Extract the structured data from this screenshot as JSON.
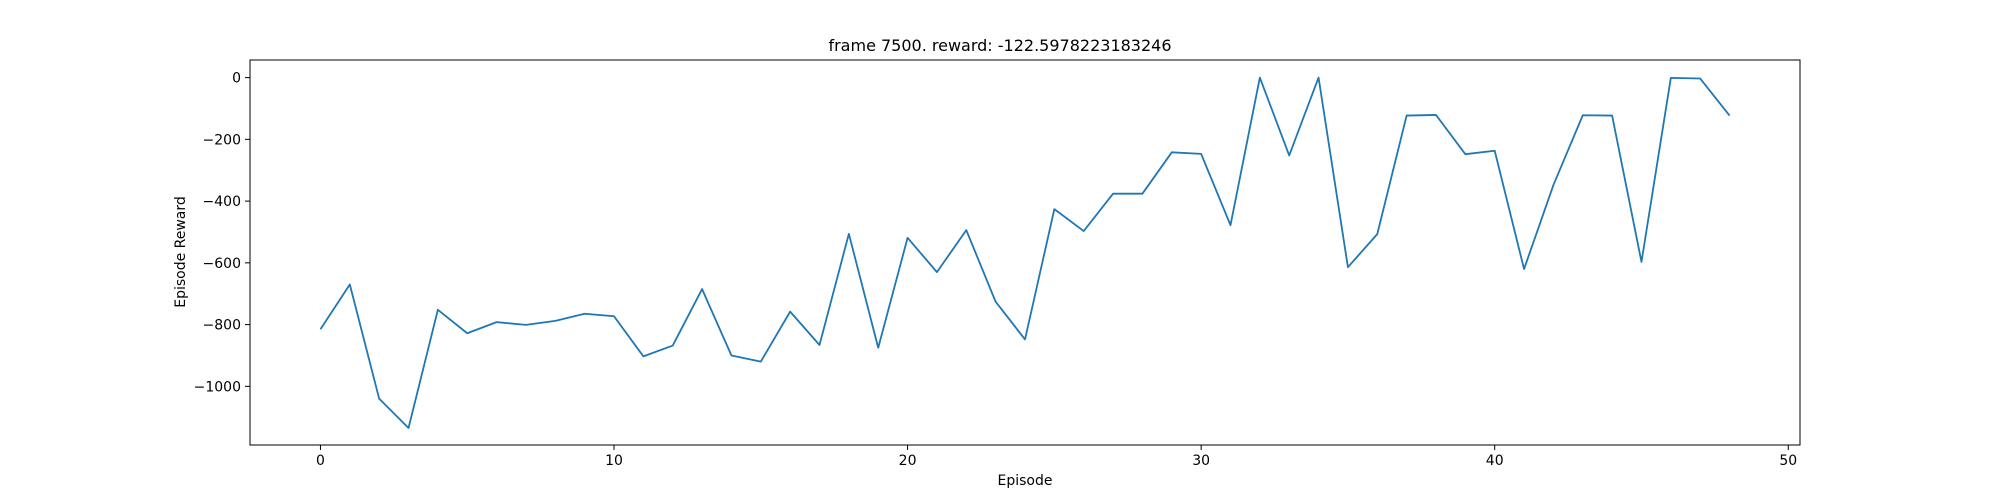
{
  "chart_data": {
    "type": "line",
    "title": "frame 7500. reward: -122.5978223183246",
    "xlabel": "Episode",
    "ylabel": "Episode Reward",
    "xlim": [
      -2.4,
      50.4
    ],
    "ylim": [
      -1190,
      57
    ],
    "xticks": [
      0,
      10,
      20,
      30,
      40,
      50
    ],
    "yticks": [
      0,
      -200,
      -400,
      -600,
      -800,
      -1000
    ],
    "xtick_labels": [
      "0",
      "10",
      "20",
      "30",
      "40",
      "50"
    ],
    "ytick_labels": [
      "0",
      "−200",
      "−400",
      "−600",
      "−800",
      "−1000"
    ],
    "grid": false,
    "line_color": "#1f77b4",
    "series": [
      {
        "x": [
          0,
          1,
          2,
          3,
          4,
          5,
          6,
          7,
          8,
          9,
          10,
          11,
          12,
          13,
          14,
          15,
          16,
          17,
          18,
          19,
          20,
          21,
          22,
          23,
          24,
          25,
          26,
          27,
          28,
          29,
          30,
          31,
          32,
          33,
          34,
          35,
          36,
          37,
          38,
          39,
          40,
          41,
          42,
          43,
          44,
          45,
          46,
          47,
          48
        ],
        "values": [
          -815,
          -670,
          -1040,
          -1135,
          -752,
          -828,
          -792,
          -801,
          -788,
          -765,
          -773,
          -903,
          -868,
          -685,
          -900,
          -920,
          -758,
          -866,
          -506,
          -875,
          -519,
          -630,
          -494,
          -726,
          -848,
          -426,
          -497,
          -376,
          -376,
          -242,
          -247,
          -478,
          0,
          -252,
          0,
          -614,
          -507,
          -123,
          -121,
          -248,
          -237,
          -620,
          -348,
          -122,
          -123,
          -597,
          -1,
          -3,
          -123
        ]
      }
    ]
  }
}
